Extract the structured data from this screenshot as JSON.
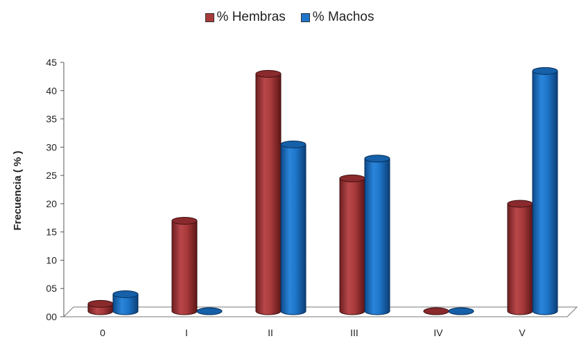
{
  "chart_data": {
    "type": "bar",
    "ylabel": "Frecuencia ( % )",
    "categories": [
      "0",
      "I",
      "II",
      "III",
      "IV",
      "V"
    ],
    "yticks": [
      "00",
      "05",
      "10",
      "15",
      "20",
      "25",
      "30",
      "35",
      "40",
      "45"
    ],
    "ylim": [
      0,
      45
    ],
    "legend_position": "top",
    "series": [
      {
        "name": "% Hembras",
        "color": "#a83a3b",
        "values": [
          1.3,
          16,
          42,
          23.5,
          0,
          19
        ]
      },
      {
        "name": "% Machos",
        "color": "#1e75c9",
        "values": [
          3,
          0,
          29.5,
          27,
          0,
          42.5
        ]
      }
    ]
  }
}
